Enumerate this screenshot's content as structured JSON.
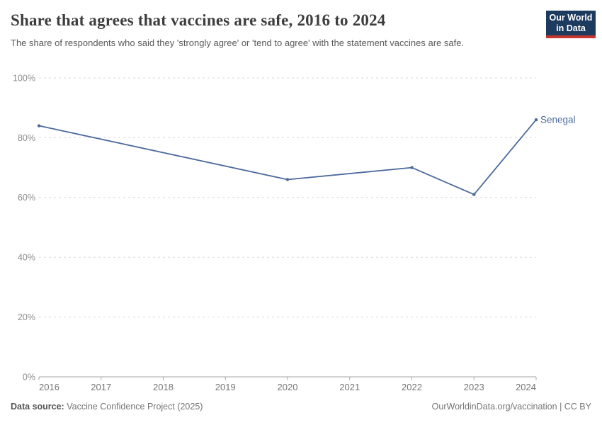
{
  "header": {
    "title": "Share that agrees that vaccines are safe, 2016 to 2024",
    "subtitle": "The share of respondents who said they 'strongly agree' or 'tend to agree' with the statement vaccines are safe.",
    "logo": {
      "line1": "Our World",
      "line2": "in Data"
    }
  },
  "chart_data": {
    "type": "line",
    "title": "Share that agrees that vaccines are safe, 2016 to 2024",
    "xlabel": "",
    "ylabel": "",
    "xlim": [
      2016,
      2024
    ],
    "ylim": [
      0,
      100
    ],
    "x_ticks": [
      2016,
      2017,
      2018,
      2019,
      2020,
      2021,
      2022,
      2023,
      2024
    ],
    "y_ticks": [
      0,
      20,
      40,
      60,
      80,
      100
    ],
    "y_tick_suffix": "%",
    "grid": "horizontal dashed",
    "legend_position": "end-of-line label",
    "series": [
      {
        "name": "Senegal",
        "color": "#4C6A9C",
        "points": [
          {
            "year": 2016,
            "value": 84
          },
          {
            "year": 2020,
            "value": 66
          },
          {
            "year": 2022,
            "value": 70
          },
          {
            "year": 2023,
            "value": 61
          },
          {
            "year": 2024,
            "value": 86
          }
        ]
      }
    ]
  },
  "footer": {
    "source_label": "Data source:",
    "source_value": "Vaccine Confidence Project (2025)",
    "link_text": "OurWorldinData.org/vaccination | CC BY"
  },
  "colors": {
    "accent": "#4C6A9C",
    "logo_navy": "#1d3a5f",
    "logo_red": "#c7362c",
    "gridline": "#d9d9d9",
    "axis": "#a6a6a6",
    "title_text": "#3d3d3d",
    "subtitle_text": "#5a5a5a",
    "footer_text": "#757575"
  }
}
